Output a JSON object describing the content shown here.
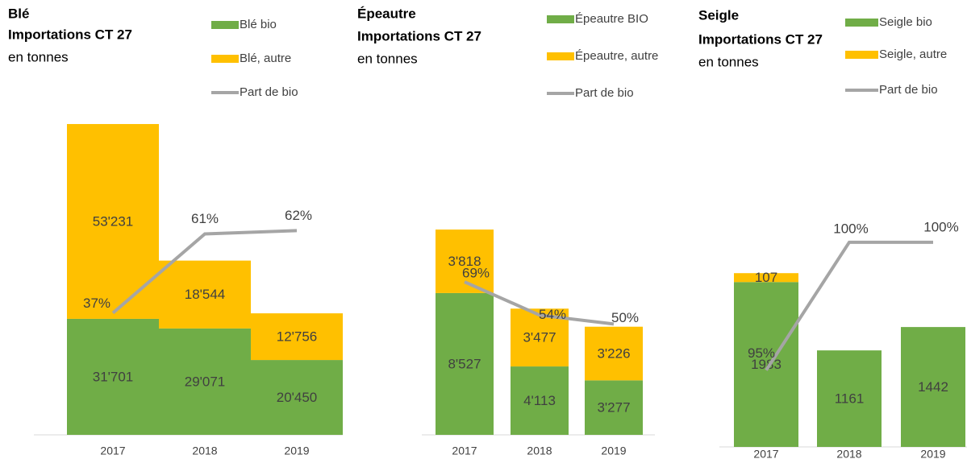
{
  "chart_data": [
    {
      "type": "bar",
      "stacked": true,
      "title": "Blé",
      "subtitle": "Importations CT 27",
      "unit_label": "en tonnes",
      "categories": [
        "2017",
        "2018",
        "2019"
      ],
      "series": [
        {
          "name": "Blé bio",
          "color": "#70ad47",
          "values": [
            31701,
            29071,
            20450
          ],
          "value_labels": [
            "31'701",
            "29'071",
            "20'450"
          ]
        },
        {
          "name": "Blé, autre",
          "color": "#ffc000",
          "values": [
            53231,
            18544,
            12756
          ],
          "value_labels": [
            "53'231",
            "18'544",
            "12'756"
          ]
        },
        {
          "name": "Part de bio",
          "type": "line",
          "axis": "y2",
          "color": "#a5a5a5",
          "values": [
            37,
            61,
            62
          ],
          "value_labels": [
            "37%",
            "61%",
            "62%"
          ]
        }
      ],
      "ylim": [
        0,
        90000
      ],
      "y2lim": [
        0,
        100
      ]
    },
    {
      "type": "bar",
      "stacked": true,
      "title": "Épeautre",
      "subtitle": "Importations CT 27",
      "unit_label": "en tonnes",
      "categories": [
        "2017",
        "2018",
        "2019"
      ],
      "series": [
        {
          "name": "Épeautre BIO",
          "color": "#70ad47",
          "values": [
            8527,
            4113,
            3277
          ],
          "value_labels": [
            "8'527",
            "4'113",
            "3'277"
          ]
        },
        {
          "name": "Épeautre, autre",
          "color": "#ffc000",
          "values": [
            3818,
            3477,
            3226
          ],
          "value_labels": [
            "3'818",
            "3'477",
            "3'226"
          ]
        },
        {
          "name": "Part de bio",
          "type": "line",
          "axis": "y2",
          "color": "#a5a5a5",
          "values": [
            69,
            54,
            50
          ],
          "value_labels": [
            "69%",
            "54%",
            "50%"
          ]
        }
      ],
      "ylim": [
        0,
        20000
      ],
      "y2lim": [
        0,
        150
      ]
    },
    {
      "type": "bar",
      "stacked": true,
      "title": "Seigle",
      "subtitle": "Importations CT 27",
      "unit_label": "en tonnes",
      "categories": [
        "2017",
        "2018",
        "2019"
      ],
      "series": [
        {
          "name": "Seigle bio",
          "color": "#70ad47",
          "values": [
            1983,
            1161,
            1442
          ]
        },
        {
          "name": "Seigle, autre",
          "color": "#ffc000",
          "values": [
            107,
            null,
            null
          ]
        },
        {
          "name": "Part de bio",
          "type": "line",
          "axis": "y2",
          "color": "#a5a5a5",
          "values": [
            95,
            100,
            100
          ],
          "value_labels": [
            "95%",
            "100%",
            "100%"
          ]
        }
      ],
      "ylim": [
        0,
        4000
      ],
      "y2lim": [
        92,
        105
      ]
    }
  ]
}
